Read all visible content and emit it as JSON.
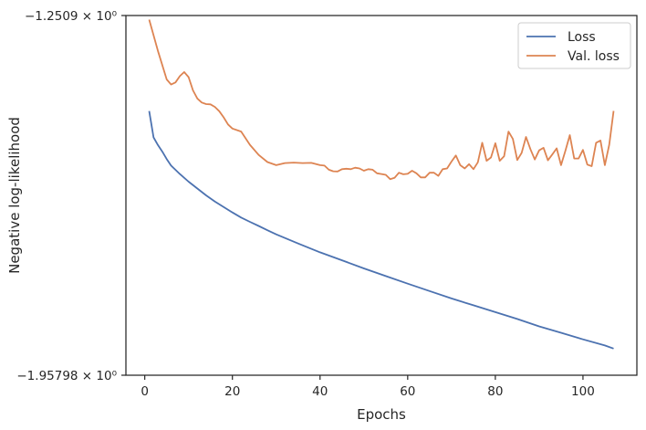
{
  "chart_data": {
    "type": "line",
    "xlabel": "Epochs",
    "ylabel": "Negative log-likelihood",
    "xlim": [
      -4.3,
      112.3
    ],
    "ylim": [
      -1.95798,
      -1.2509
    ],
    "x_ticks": [
      0,
      20,
      40,
      60,
      80,
      100
    ],
    "y_tick_labels": [
      {
        "value": -1.2509,
        "label": "−1.2509 × 10⁰"
      },
      {
        "value": -1.95798,
        "label": "−1.95798 × 10⁰"
      }
    ],
    "grid": false,
    "legend_position": "top-right",
    "series": [
      {
        "name": "Loss",
        "color": "#4c72b0",
        "x": [
          1,
          2,
          3,
          4,
          5,
          6,
          8,
          10,
          12,
          14,
          16,
          18,
          20,
          22,
          24,
          26,
          28,
          30,
          35,
          40,
          45,
          50,
          55,
          60,
          65,
          70,
          75,
          80,
          85,
          90,
          95,
          100,
          105,
          107
        ],
        "y": [
          -1.4386,
          -1.4905,
          -1.5055,
          -1.5185,
          -1.533,
          -1.546,
          -1.5625,
          -1.5775,
          -1.591,
          -1.6045,
          -1.6165,
          -1.6275,
          -1.638,
          -1.648,
          -1.6565,
          -1.6645,
          -1.673,
          -1.681,
          -1.699,
          -1.7165,
          -1.732,
          -1.748,
          -1.763,
          -1.778,
          -1.7925,
          -1.807,
          -1.8205,
          -1.834,
          -1.8475,
          -1.862,
          -1.8745,
          -1.8875,
          -1.8995,
          -1.9055
        ]
      },
      {
        "name": "Val. loss",
        "color": "#dd8452",
        "x": [
          1,
          3,
          5,
          6,
          7,
          8,
          9,
          10,
          11,
          12,
          13,
          14,
          15,
          16,
          17,
          18,
          19,
          20,
          22,
          24,
          26,
          28,
          30,
          32,
          34,
          36,
          38,
          40,
          41,
          42,
          43,
          44,
          45,
          46,
          47,
          48,
          49,
          50,
          51,
          52,
          53,
          54,
          55,
          56,
          57,
          58,
          59,
          60,
          61,
          62,
          63,
          64,
          65,
          66,
          67,
          68,
          69,
          70,
          71,
          72,
          73,
          74,
          75,
          76,
          77,
          78,
          79,
          80,
          81,
          82,
          83,
          84,
          85,
          86,
          87,
          88,
          89,
          90,
          91,
          92,
          93,
          94,
          95,
          96,
          97,
          98,
          99,
          100,
          101,
          102,
          103,
          104,
          105,
          106,
          107
        ],
        "y": [
          -1.259,
          -1.3205,
          -1.3765,
          -1.3865,
          -1.3825,
          -1.37,
          -1.362,
          -1.372,
          -1.398,
          -1.414,
          -1.422,
          -1.425,
          -1.4255,
          -1.4305,
          -1.439,
          -1.451,
          -1.465,
          -1.473,
          -1.479,
          -1.505,
          -1.525,
          -1.539,
          -1.545,
          -1.541,
          -1.54,
          -1.541,
          -1.5405,
          -1.545,
          -1.546,
          -1.554,
          -1.557,
          -1.5575,
          -1.553,
          -1.552,
          -1.553,
          -1.55,
          -1.5515,
          -1.556,
          -1.553,
          -1.554,
          -1.561,
          -1.5625,
          -1.564,
          -1.5725,
          -1.57,
          -1.56,
          -1.563,
          -1.562,
          -1.556,
          -1.561,
          -1.569,
          -1.569,
          -1.56,
          -1.56,
          -1.566,
          -1.553,
          -1.5515,
          -1.538,
          -1.526,
          -1.545,
          -1.5515,
          -1.543,
          -1.553,
          -1.5395,
          -1.501,
          -1.5365,
          -1.53,
          -1.502,
          -1.5365,
          -1.5275,
          -1.479,
          -1.4935,
          -1.535,
          -1.521,
          -1.4895,
          -1.5135,
          -1.534,
          -1.516,
          -1.511,
          -1.5355,
          -1.524,
          -1.512,
          -1.545,
          -1.5165,
          -1.486,
          -1.532,
          -1.532,
          -1.515,
          -1.544,
          -1.547,
          -1.501,
          -1.4965,
          -1.545,
          -1.505,
          -1.4385
        ]
      }
    ]
  }
}
